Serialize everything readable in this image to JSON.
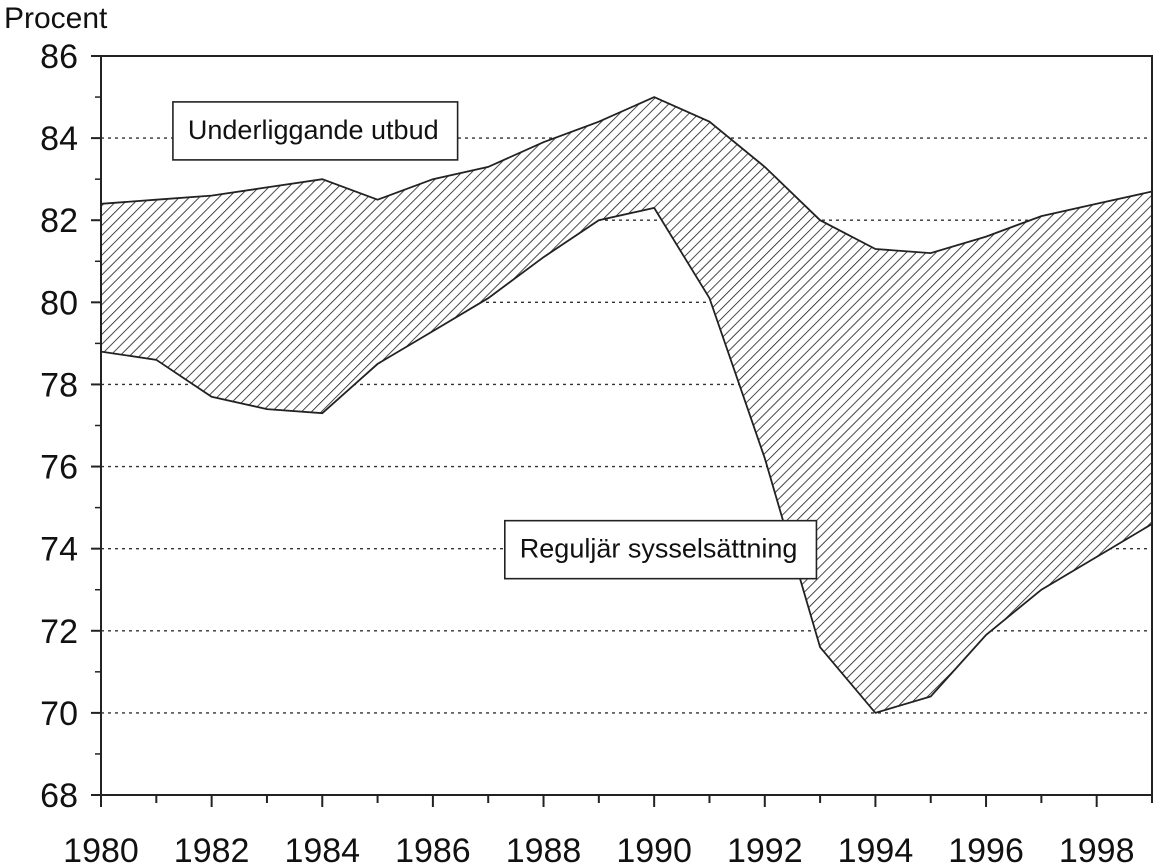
{
  "chart_data": {
    "type": "area",
    "ylabel": "Procent",
    "xlabel": "",
    "ylim": [
      68,
      86
    ],
    "xlim": [
      1980,
      1999
    ],
    "yticks": [
      "68",
      "70",
      "72",
      "74",
      "76",
      "78",
      "80",
      "82",
      "84",
      "86"
    ],
    "xticks": [
      "1980",
      "1982",
      "1984",
      "1986",
      "1988",
      "1990",
      "1992",
      "1994",
      "1996",
      "1998"
    ],
    "grid": true,
    "x": [
      1980,
      1981,
      1982,
      1983,
      1984,
      1985,
      1986,
      1987,
      1988,
      1989,
      1990,
      1991,
      1992,
      1993,
      1994,
      1995,
      1996,
      1997,
      1998,
      1999
    ],
    "series": [
      {
        "name": "Underliggande utbud",
        "values": [
          82.4,
          82.5,
          82.6,
          82.8,
          83.0,
          82.5,
          83.0,
          83.3,
          83.9,
          84.4,
          85.0,
          84.4,
          83.3,
          82.0,
          81.3,
          81.2,
          81.6,
          82.1,
          82.4,
          82.7
        ]
      },
      {
        "name": "Reguljär sysselsättning",
        "values": [
          78.8,
          78.6,
          77.7,
          77.4,
          77.3,
          78.5,
          79.3,
          80.1,
          81.1,
          82.0,
          82.3,
          80.1,
          76.2,
          71.6,
          70.0,
          70.4,
          71.9,
          73.0,
          73.8,
          74.6
        ]
      }
    ],
    "annotations": [
      {
        "text": "Underliggande utbud",
        "x": 1981.3,
        "y": 84.2
      },
      {
        "text": "Reguljär sysselsättning",
        "x": 1987.3,
        "y": 74.0
      }
    ]
  }
}
